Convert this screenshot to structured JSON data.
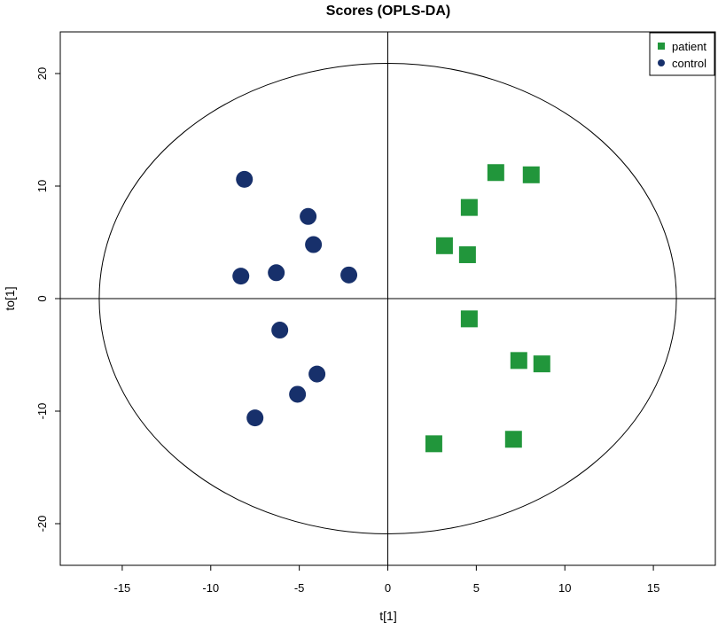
{
  "chart_data": {
    "type": "scatter",
    "title": "Scores (OPLS-DA)",
    "xlabel": "t[1]",
    "ylabel": "to[1]",
    "xlim": [
      -18.5,
      18.5
    ],
    "ylim": [
      -23.7,
      23.7
    ],
    "xticks": [
      -15,
      -10,
      -5,
      0,
      5,
      10,
      15
    ],
    "yticks": [
      -20,
      -10,
      0,
      10,
      20
    ],
    "grid": false,
    "reference_lines": {
      "x": 0,
      "y": 0
    },
    "ellipse": {
      "cx": 0,
      "cy": 0,
      "rx": 16.3,
      "ry": 20.9
    },
    "legend_position": "top-right",
    "series": [
      {
        "name": "patient",
        "marker": "square",
        "color": "#21963b",
        "points": [
          [
            6.1,
            11.2
          ],
          [
            8.1,
            11.0
          ],
          [
            4.6,
            8.1
          ],
          [
            3.2,
            4.7
          ],
          [
            4.5,
            3.9
          ],
          [
            4.6,
            -1.8
          ],
          [
            7.4,
            -5.5
          ],
          [
            8.7,
            -5.8
          ],
          [
            7.1,
            -12.5
          ],
          [
            2.6,
            -12.9
          ]
        ]
      },
      {
        "name": "control",
        "marker": "circle",
        "color": "#17306b",
        "points": [
          [
            -8.1,
            10.6
          ],
          [
            -4.5,
            7.3
          ],
          [
            -4.2,
            4.8
          ],
          [
            -8.3,
            2.0
          ],
          [
            -6.3,
            2.3
          ],
          [
            -2.2,
            2.1
          ],
          [
            -6.1,
            -2.8
          ],
          [
            -4.0,
            -6.7
          ],
          [
            -5.1,
            -8.5
          ],
          [
            -7.5,
            -10.6
          ]
        ]
      }
    ]
  }
}
